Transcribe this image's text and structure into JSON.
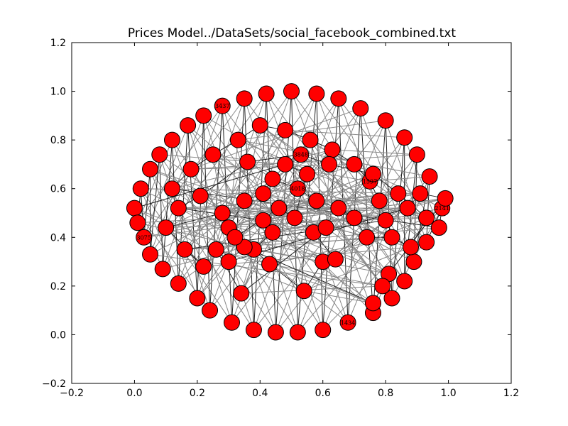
{
  "chart_data": {
    "type": "scatter",
    "title": "Prices Model../DataSets/social_facebook_combined.txt",
    "xlabel": "",
    "ylabel": "",
    "xlim": [
      -0.2,
      1.2
    ],
    "ylim": [
      -0.2,
      1.2
    ],
    "x_ticks": [
      -0.2,
      0.0,
      0.2,
      0.4,
      0.6,
      0.8,
      1.0,
      1.2
    ],
    "y_ticks": [
      -0.2,
      0.0,
      0.2,
      0.4,
      0.6,
      0.8,
      1.0,
      1.2
    ],
    "x_tick_labels": [
      "−0.2",
      "0.0",
      "0.2",
      "0.4",
      "0.6",
      "0.8",
      "1.0",
      "1.2"
    ],
    "y_tick_labels": [
      "−0.2",
      "0.0",
      "0.2",
      "0.4",
      "0.6",
      "0.8",
      "1.0",
      "1.2"
    ],
    "grid": false,
    "legend": "none",
    "node_color": "#ff0000",
    "node_edge_color": "#000000",
    "edge_color": "#888888",
    "series": [
      {
        "nodes": [
          {
            "x": 0.0,
            "y": 0.52
          },
          {
            "x": 0.01,
            "y": 0.46
          },
          {
            "x": 0.02,
            "y": 0.6
          },
          {
            "x": 0.03,
            "y": 0.4
          },
          {
            "x": 0.05,
            "y": 0.68
          },
          {
            "x": 0.05,
            "y": 0.33
          },
          {
            "x": 0.08,
            "y": 0.74
          },
          {
            "x": 0.09,
            "y": 0.27
          },
          {
            "x": 0.12,
            "y": 0.8
          },
          {
            "x": 0.14,
            "y": 0.21
          },
          {
            "x": 0.17,
            "y": 0.86
          },
          {
            "x": 0.2,
            "y": 0.15
          },
          {
            "x": 0.22,
            "y": 0.9
          },
          {
            "x": 0.24,
            "y": 0.1
          },
          {
            "x": 0.28,
            "y": 0.94
          },
          {
            "x": 0.31,
            "y": 0.05
          },
          {
            "x": 0.35,
            "y": 0.97
          },
          {
            "x": 0.38,
            "y": 0.02
          },
          {
            "x": 0.42,
            "y": 0.99
          },
          {
            "x": 0.45,
            "y": 0.01
          },
          {
            "x": 0.5,
            "y": 1.0
          },
          {
            "x": 0.52,
            "y": 0.01
          },
          {
            "x": 0.58,
            "y": 0.99
          },
          {
            "x": 0.6,
            "y": 0.02
          },
          {
            "x": 0.65,
            "y": 0.97
          },
          {
            "x": 0.68,
            "y": 0.05
          },
          {
            "x": 0.72,
            "y": 0.93
          },
          {
            "x": 0.76,
            "y": 0.09
          },
          {
            "x": 0.8,
            "y": 0.88
          },
          {
            "x": 0.82,
            "y": 0.15
          },
          {
            "x": 0.86,
            "y": 0.81
          },
          {
            "x": 0.86,
            "y": 0.22
          },
          {
            "x": 0.9,
            "y": 0.74
          },
          {
            "x": 0.89,
            "y": 0.3
          },
          {
            "x": 0.94,
            "y": 0.65
          },
          {
            "x": 0.93,
            "y": 0.38
          },
          {
            "x": 0.98,
            "y": 0.52
          },
          {
            "x": 0.97,
            "y": 0.44
          },
          {
            "x": 0.12,
            "y": 0.6
          },
          {
            "x": 0.18,
            "y": 0.68
          },
          {
            "x": 0.25,
            "y": 0.74
          },
          {
            "x": 0.33,
            "y": 0.8
          },
          {
            "x": 0.4,
            "y": 0.86
          },
          {
            "x": 0.48,
            "y": 0.84
          },
          {
            "x": 0.56,
            "y": 0.8
          },
          {
            "x": 0.63,
            "y": 0.76
          },
          {
            "x": 0.7,
            "y": 0.7
          },
          {
            "x": 0.75,
            "y": 0.63
          },
          {
            "x": 0.78,
            "y": 0.55
          },
          {
            "x": 0.8,
            "y": 0.47
          },
          {
            "x": 0.16,
            "y": 0.35
          },
          {
            "x": 0.22,
            "y": 0.28
          },
          {
            "x": 0.1,
            "y": 0.44
          },
          {
            "x": 0.28,
            "y": 0.5
          },
          {
            "x": 0.3,
            "y": 0.44
          },
          {
            "x": 0.35,
            "y": 0.55
          },
          {
            "x": 0.41,
            "y": 0.58
          },
          {
            "x": 0.44,
            "y": 0.64
          },
          {
            "x": 0.52,
            "y": 0.6
          },
          {
            "x": 0.58,
            "y": 0.55
          },
          {
            "x": 0.65,
            "y": 0.52
          },
          {
            "x": 0.7,
            "y": 0.48
          },
          {
            "x": 0.74,
            "y": 0.4
          },
          {
            "x": 0.82,
            "y": 0.4
          },
          {
            "x": 0.88,
            "y": 0.36
          },
          {
            "x": 0.93,
            "y": 0.48
          },
          {
            "x": 0.84,
            "y": 0.58
          },
          {
            "x": 0.76,
            "y": 0.66
          },
          {
            "x": 0.62,
            "y": 0.7
          },
          {
            "x": 0.53,
            "y": 0.74
          },
          {
            "x": 0.36,
            "y": 0.71
          },
          {
            "x": 0.21,
            "y": 0.57
          },
          {
            "x": 0.14,
            "y": 0.52
          },
          {
            "x": 0.41,
            "y": 0.47
          },
          {
            "x": 0.44,
            "y": 0.42
          },
          {
            "x": 0.38,
            "y": 0.35
          },
          {
            "x": 0.43,
            "y": 0.29
          },
          {
            "x": 0.54,
            "y": 0.18
          },
          {
            "x": 0.6,
            "y": 0.3
          },
          {
            "x": 0.64,
            "y": 0.31
          },
          {
            "x": 0.57,
            "y": 0.42
          },
          {
            "x": 0.61,
            "y": 0.44
          },
          {
            "x": 0.34,
            "y": 0.17
          },
          {
            "x": 0.26,
            "y": 0.35
          },
          {
            "x": 0.3,
            "y": 0.3
          },
          {
            "x": 0.87,
            "y": 0.52
          },
          {
            "x": 0.91,
            "y": 0.58
          },
          {
            "x": 0.99,
            "y": 0.56
          },
          {
            "x": 0.81,
            "y": 0.25
          },
          {
            "x": 0.79,
            "y": 0.2
          },
          {
            "x": 0.76,
            "y": 0.13
          },
          {
            "x": 0.35,
            "y": 0.36
          },
          {
            "x": 0.32,
            "y": 0.4
          },
          {
            "x": 0.46,
            "y": 0.52
          },
          {
            "x": 0.51,
            "y": 0.48
          },
          {
            "x": 0.55,
            "y": 0.66
          },
          {
            "x": 0.48,
            "y": 0.7
          }
        ]
      }
    ],
    "node_label_sample": [
      "3075",
      "3437",
      "1434",
      "2141",
      "1597",
      "4018",
      "3848"
    ]
  }
}
